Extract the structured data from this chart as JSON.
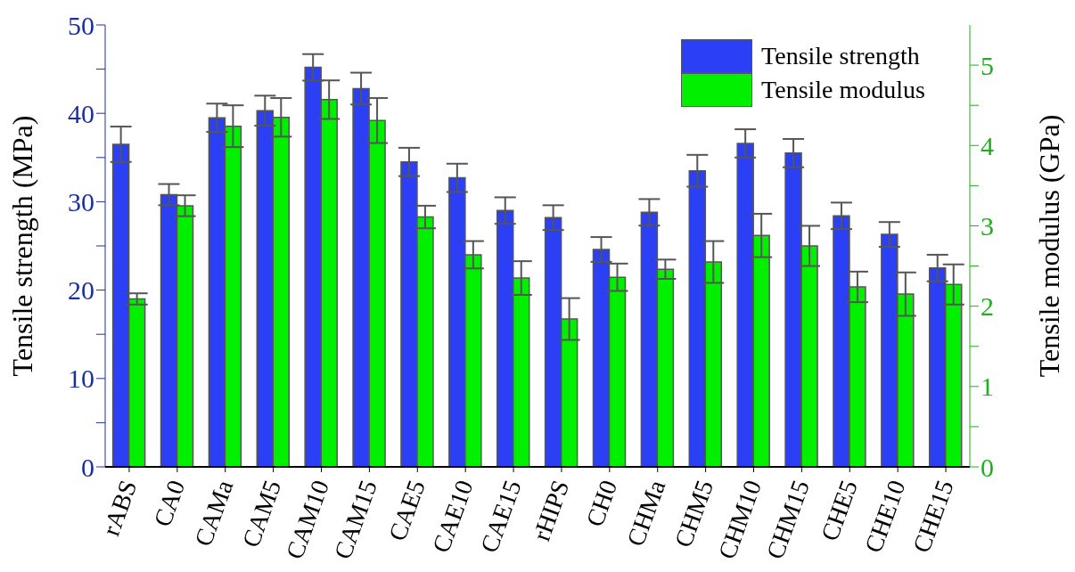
{
  "chart_data": {
    "type": "bar",
    "ylabel": "Tensile strength (MPa)",
    "y2label": "Tensile modulus (GPa)",
    "categories": [
      "rABS",
      "CA0",
      "CAMa",
      "CAM5",
      "CAM10",
      "CAM15",
      "CAE5",
      "CAE10",
      "CAE15",
      "rHIPS",
      "CH0",
      "CHMa",
      "CHM5",
      "CHM10",
      "CHM15",
      "CHE5",
      "CHE10",
      "CHE15"
    ],
    "series": [
      {
        "name": "Tensile strength",
        "color": "#2b3ff5",
        "values": [
          36.5,
          30.8,
          39.5,
          40.3,
          45.2,
          42.8,
          34.5,
          32.7,
          29,
          28.2,
          24.6,
          28.8,
          33.5,
          36.6,
          35.5,
          28.4,
          26.3,
          22.5
        ],
        "errors": [
          2,
          1.2,
          1.6,
          1.7,
          1.5,
          1.8,
          1.6,
          1.6,
          1.5,
          1.4,
          1.4,
          1.5,
          1.8,
          1.6,
          1.6,
          1.5,
          1.4,
          1.5
        ]
      },
      {
        "name": "Tensile modulus",
        "color": "#00f000",
        "axis": "y2",
        "values": [
          2.09,
          3.25,
          4.24,
          4.35,
          4.57,
          4.31,
          3.11,
          2.64,
          2.35,
          1.84,
          2.36,
          2.46,
          2.55,
          2.88,
          2.75,
          2.24,
          2.15,
          2.27
        ],
        "errors": [
          0.07,
          0.13,
          0.26,
          0.24,
          0.24,
          0.28,
          0.14,
          0.17,
          0.21,
          0.26,
          0.17,
          0.12,
          0.26,
          0.27,
          0.25,
          0.19,
          0.27,
          0.25
        ]
      }
    ],
    "ylim": [
      0,
      50
    ],
    "yticks": [
      0,
      {
        "value": 5,
        "label": null
      },
      10,
      {
        "value": 15,
        "label": null
      },
      20,
      {
        "value": 25,
        "label": null
      },
      30,
      {
        "value": 35,
        "label": null
      },
      40,
      {
        "value": 45,
        "label": null
      },
      50
    ],
    "y2lim": [
      0,
      5.5
    ],
    "y2ticks": [
      0,
      {
        "value": 0.5,
        "label": null
      },
      1,
      {
        "value": 1.5,
        "label": null
      },
      2,
      {
        "value": 2.5,
        "label": null
      },
      3,
      {
        "value": 3.5,
        "label": null
      },
      4,
      {
        "value": 4.5,
        "label": null
      },
      5
    ],
    "legend": "top right"
  }
}
